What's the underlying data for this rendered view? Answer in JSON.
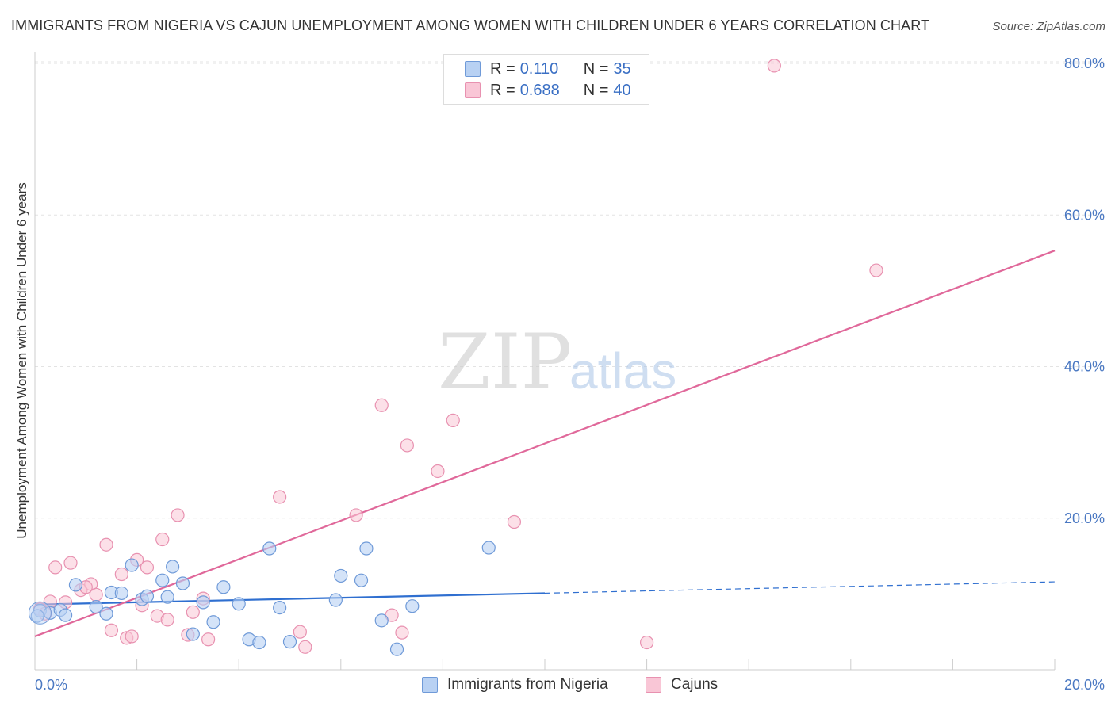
{
  "header": {
    "title": "IMMIGRANTS FROM NIGERIA VS CAJUN UNEMPLOYMENT AMONG WOMEN WITH CHILDREN UNDER 6 YEARS CORRELATION CHART",
    "source": "Source: ZipAtlas.com"
  },
  "watermark": {
    "zip": "ZIP",
    "atlas": "atlas"
  },
  "legend": {
    "rows": [
      {
        "r_label": "R =",
        "r_value": "0.110",
        "n_label": "N =",
        "n_value": "35"
      },
      {
        "r_label": "R =",
        "r_value": "0.688",
        "n_label": "N =",
        "n_value": "40"
      }
    ]
  },
  "bottom_legend": {
    "series1": "Immigrants from Nigeria",
    "series2": "Cajuns"
  },
  "colors": {
    "nigeria_fill": "#b8d1f3",
    "nigeria_stroke": "#6f9ad8",
    "nigeria_line": "#2f6fd0",
    "cajun_fill": "#f9c6d6",
    "cajun_stroke": "#e891b0",
    "cajun_line": "#e0689a",
    "grid": "#e3e3e3",
    "axis_text": "#4a78c2"
  },
  "chart_data": {
    "type": "scatter",
    "title": "IMMIGRANTS FROM NIGERIA VS CAJUN UNEMPLOYMENT AMONG WOMEN WITH CHILDREN UNDER 6 YEARS CORRELATION CHART",
    "xlabel": "",
    "ylabel": "Unemployment Among Women with Children Under 6 years",
    "xlim": [
      0,
      20
    ],
    "ylim": [
      0,
      80
    ],
    "x_tick_labels": [
      "0.0%",
      "20.0%"
    ],
    "y_ticks": [
      20,
      40,
      60,
      80
    ],
    "y_tick_labels": [
      "20.0%",
      "40.0%",
      "60.0%",
      "80.0%"
    ],
    "grid": true,
    "legend_position": "top-center",
    "series": [
      {
        "name": "Immigrants from Nigeria",
        "R": 0.11,
        "N": 35,
        "points": [
          [
            0.1,
            7.8
          ],
          [
            0.3,
            7.5
          ],
          [
            0.5,
            7.9
          ],
          [
            0.6,
            7.2
          ],
          [
            0.8,
            11.2
          ],
          [
            1.2,
            8.3
          ],
          [
            1.4,
            7.4
          ],
          [
            1.5,
            10.2
          ],
          [
            1.7,
            10.1
          ],
          [
            1.9,
            13.8
          ],
          [
            2.1,
            9.3
          ],
          [
            2.2,
            9.7
          ],
          [
            2.5,
            11.8
          ],
          [
            2.6,
            9.6
          ],
          [
            2.7,
            13.6
          ],
          [
            2.9,
            11.4
          ],
          [
            3.1,
            4.7
          ],
          [
            3.3,
            8.9
          ],
          [
            3.5,
            6.3
          ],
          [
            3.7,
            10.9
          ],
          [
            4.0,
            8.7
          ],
          [
            4.2,
            4.0
          ],
          [
            4.4,
            3.6
          ],
          [
            4.6,
            16.0
          ],
          [
            4.8,
            8.2
          ],
          [
            5.0,
            3.7
          ],
          [
            5.9,
            9.2
          ],
          [
            6.0,
            12.4
          ],
          [
            6.4,
            11.8
          ],
          [
            6.5,
            16.0
          ],
          [
            6.8,
            6.5
          ],
          [
            7.1,
            2.7
          ],
          [
            7.4,
            8.4
          ],
          [
            8.9,
            16.1
          ],
          [
            0.05,
            7.1
          ]
        ],
        "trend": {
          "x0": 0,
          "y0": 8.6,
          "x1": 10,
          "y1": 10.1,
          "dashed_to_x": 20,
          "dashed_to_y": 11.6
        }
      },
      {
        "name": "Cajuns",
        "R": 0.688,
        "N": 40,
        "points": [
          [
            0.1,
            8.0
          ],
          [
            0.3,
            9.0
          ],
          [
            0.4,
            13.5
          ],
          [
            0.6,
            8.9
          ],
          [
            0.7,
            14.1
          ],
          [
            0.9,
            10.5
          ],
          [
            1.1,
            11.3
          ],
          [
            1.2,
            9.9
          ],
          [
            1.4,
            16.5
          ],
          [
            1.5,
            5.2
          ],
          [
            1.7,
            12.6
          ],
          [
            1.8,
            4.2
          ],
          [
            1.9,
            4.4
          ],
          [
            2.0,
            14.5
          ],
          [
            2.1,
            8.5
          ],
          [
            2.2,
            13.5
          ],
          [
            2.4,
            7.1
          ],
          [
            2.5,
            17.2
          ],
          [
            2.6,
            6.6
          ],
          [
            2.8,
            20.4
          ],
          [
            3.0,
            4.6
          ],
          [
            3.1,
            7.6
          ],
          [
            3.3,
            9.4
          ],
          [
            3.4,
            4.0
          ],
          [
            4.8,
            22.8
          ],
          [
            5.2,
            5.0
          ],
          [
            5.3,
            3.0
          ],
          [
            6.3,
            20.4
          ],
          [
            6.8,
            34.9
          ],
          [
            7.0,
            7.2
          ],
          [
            7.2,
            4.9
          ],
          [
            7.3,
            29.6
          ],
          [
            7.9,
            26.2
          ],
          [
            8.2,
            32.9
          ],
          [
            9.4,
            19.5
          ],
          [
            12.0,
            3.6
          ],
          [
            14.5,
            79.7
          ],
          [
            16.5,
            52.7
          ],
          [
            0.2,
            7.4
          ],
          [
            1.0,
            10.9
          ]
        ],
        "trend": {
          "x0": 0,
          "y0": 4.4,
          "x1": 20,
          "y1": 55.3
        }
      }
    ]
  }
}
